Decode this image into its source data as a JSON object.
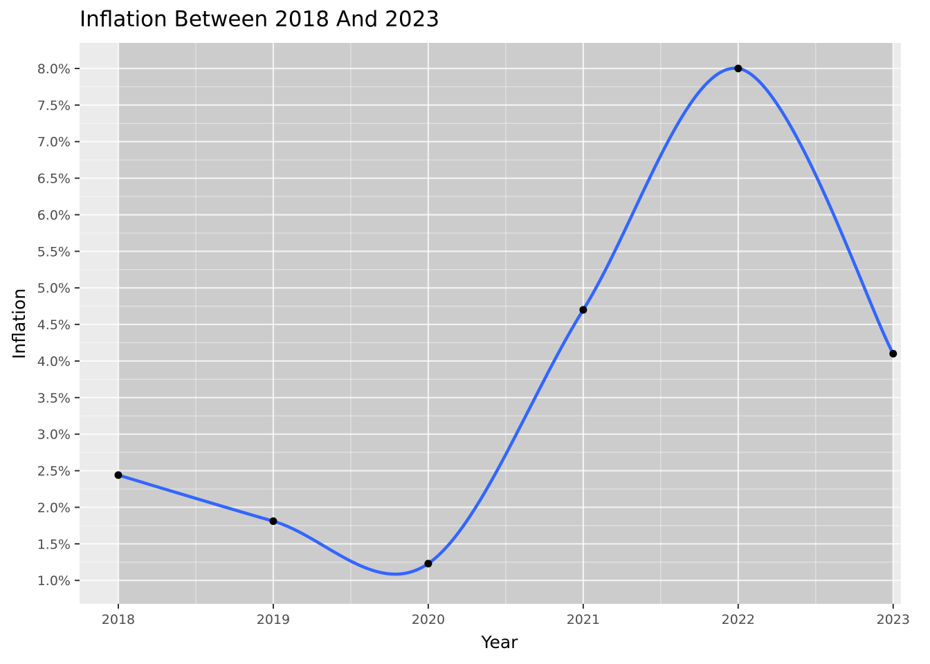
{
  "chart_data": {
    "type": "line",
    "title": "Inflation Between 2018 And 2023",
    "xlabel": "Year",
    "ylabel": "Inflation",
    "x": [
      2018,
      2019,
      2020,
      2021,
      2022,
      2023
    ],
    "x_tick_labels": [
      "2018",
      "2019",
      "2020",
      "2021",
      "2022",
      "2023"
    ],
    "y_tick_labels": [
      "1.0%",
      "1.5%",
      "2.0%",
      "2.5%",
      "3.0%",
      "3.5%",
      "4.0%",
      "4.5%",
      "5.0%",
      "5.5%",
      "6.0%",
      "6.5%",
      "7.0%",
      "7.5%",
      "8.0%"
    ],
    "y_ticks": [
      1.0,
      1.5,
      2.0,
      2.5,
      3.0,
      3.5,
      4.0,
      4.5,
      5.0,
      5.5,
      6.0,
      6.5,
      7.0,
      7.5,
      8.0
    ],
    "xlim": [
      2017.75,
      2023.05
    ],
    "ylim": [
      0.68,
      8.35
    ],
    "series": [
      {
        "values": [
          2.44,
          1.81,
          1.23,
          4.7,
          8.0,
          4.1
        ],
        "line_color": "#3366ff",
        "point_color": "#000000",
        "smoothed": true
      }
    ],
    "highlight_band": {
      "from": 2018,
      "to": 2023,
      "color": "#cccccc"
    },
    "panel_background": "#ebebeb",
    "grid": true,
    "legend": "none"
  }
}
